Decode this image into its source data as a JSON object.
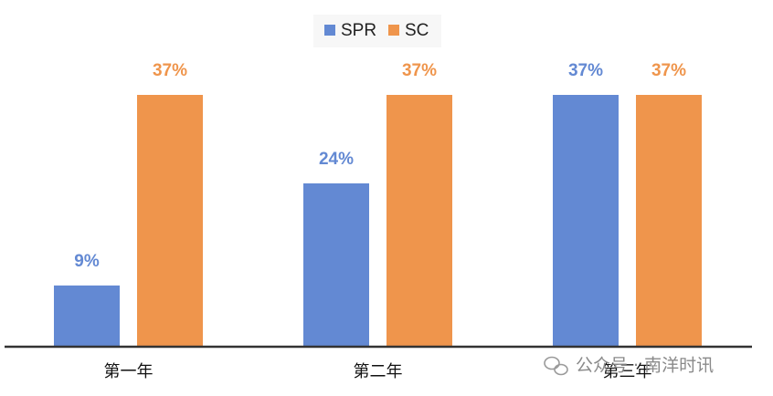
{
  "chart_data": {
    "type": "bar",
    "categories": [
      "第一年",
      "第二年",
      "第三年"
    ],
    "series": [
      {
        "name": "SPR",
        "color": "#6389d3",
        "values": [
          9,
          24,
          37
        ],
        "value_labels": [
          "9%",
          "24%",
          "37%"
        ]
      },
      {
        "name": "SC",
        "color": "#ef954c",
        "values": [
          37,
          37,
          37
        ],
        "value_labels": [
          "37%",
          "37%",
          "37%"
        ]
      }
    ],
    "ylim": [
      0,
      37
    ],
    "watermark": "公众号 · 南洋时讯"
  }
}
